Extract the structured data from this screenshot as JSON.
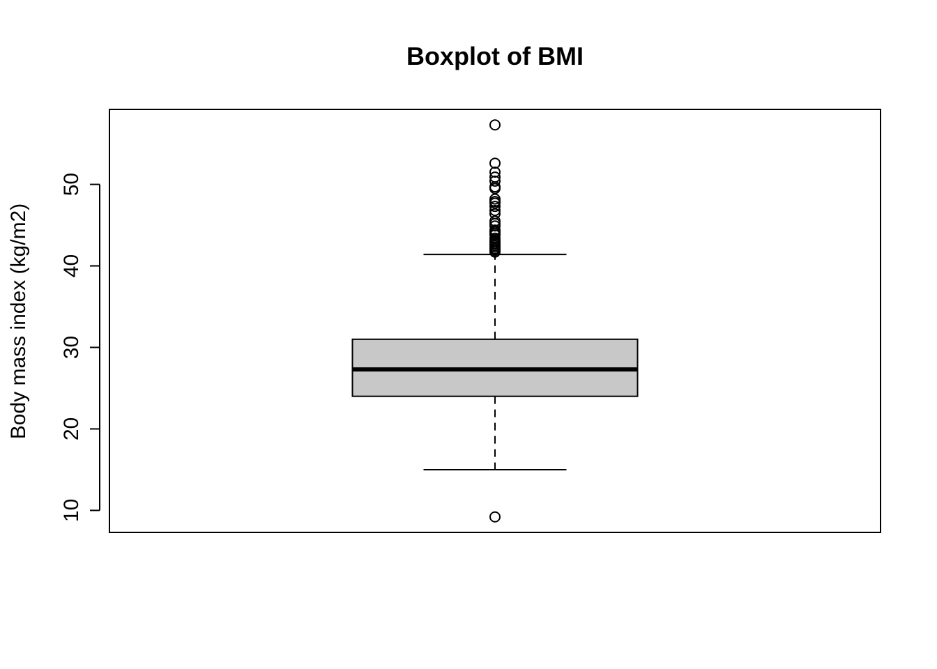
{
  "chart_data": {
    "type": "boxplot",
    "title": "Boxplot of BMI",
    "xlabel": "",
    "ylabel": "Body mass index (kg/m2)",
    "ylim": [
      7.3,
      59.2
    ],
    "yticks": [
      10,
      20,
      30,
      40,
      50
    ],
    "grid": false,
    "box": {
      "lower_whisker": 15.0,
      "q1": 24.0,
      "median": 27.3,
      "q3": 31.0,
      "upper_whisker": 41.4
    },
    "outliers": [
      57.3,
      52.6,
      51.5,
      50.9,
      50.4,
      49.7,
      49.5,
      48.2,
      47.9,
      47.7,
      47.3,
      46.8,
      46.4,
      45.5,
      45.2,
      44.9,
      44.4,
      44.2,
      44.0,
      43.8,
      43.4,
      43.1,
      42.9,
      42.7,
      42.5,
      42.3,
      42.1,
      41.9,
      41.7,
      9.2
    ],
    "colors": {
      "box_fill": "#c8c8c8",
      "stroke": "#000000"
    }
  }
}
